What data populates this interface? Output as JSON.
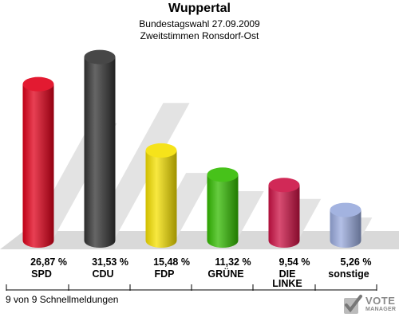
{
  "chart_data": {
    "type": "bar",
    "title": "Wuppertal",
    "subtitle1": "Bundestagswahl 27.09.2009",
    "subtitle2": "Zweitstimmen Ronsdorf-Ost",
    "categories": [
      "SPD",
      "CDU",
      "FDP",
      "GRÜNE",
      "DIE LINKE",
      "sonstige"
    ],
    "category_lines": [
      [
        "SPD"
      ],
      [
        "CDU"
      ],
      [
        "FDP"
      ],
      [
        "GRÜNE"
      ],
      [
        "DIE",
        "LINKE"
      ],
      [
        "sonstige"
      ]
    ],
    "values": [
      26.87,
      31.53,
      15.48,
      11.32,
      9.54,
      5.26
    ],
    "value_labels": [
      "26,87 %",
      "31,53 %",
      "15,48 %",
      "11,32 %",
      "9,54 %",
      "5,26 %"
    ],
    "colors": [
      "#e0001a",
      "#333333",
      "#f5e000",
      "#33bb00",
      "#cc1144",
      "#99aadd"
    ],
    "ylim": [
      0,
      35
    ]
  },
  "footer": {
    "status": "9 von 9 Schnellmeldungen"
  },
  "logo": {
    "line1": "VOTE",
    "line2": "MANAGER"
  }
}
